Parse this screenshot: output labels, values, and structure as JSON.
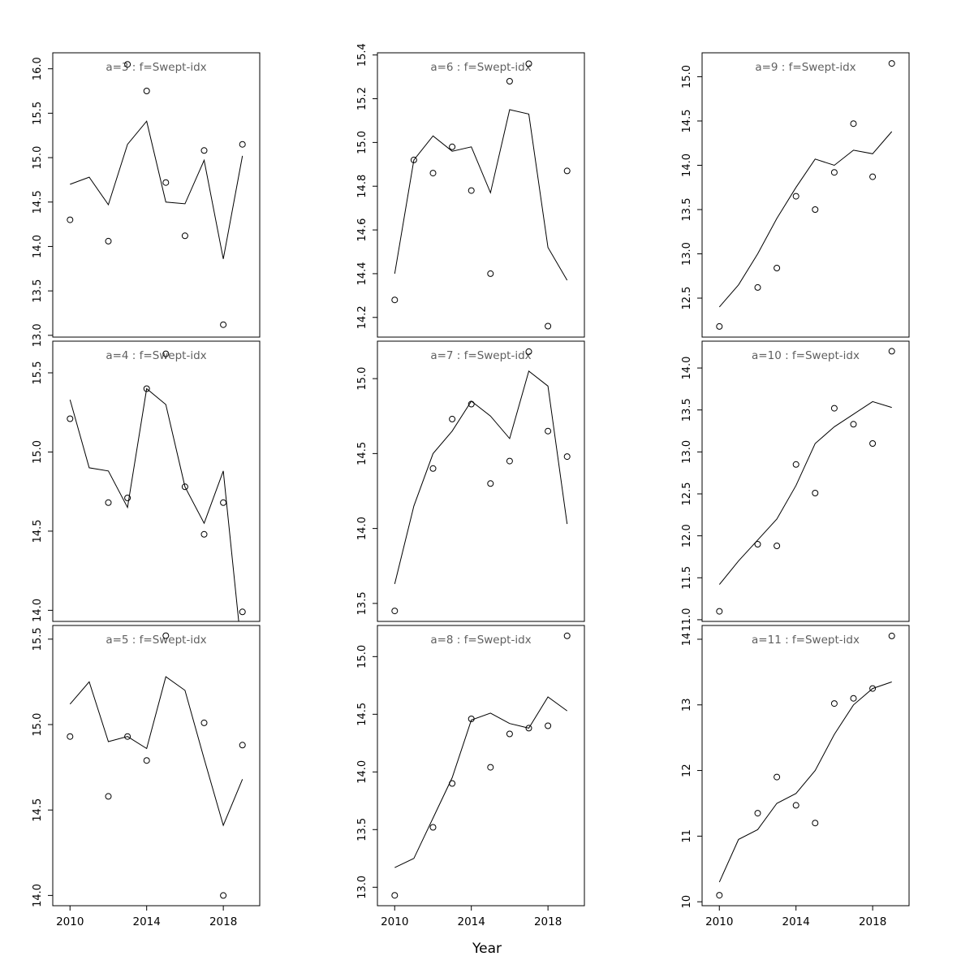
{
  "figure": {
    "xlabel": "Year"
  },
  "chart_data": {
    "type": "line+scatter",
    "title": "",
    "xlabel": "Year",
    "ylabel": "",
    "grid": "off",
    "legend": "none",
    "layout": {
      "rows": 3,
      "cols": 3,
      "order": "row-major-display"
    },
    "colors": {
      "line": "#000000",
      "point": "#000000",
      "frame": "#000000",
      "title": "#5f5f5f",
      "tick_label": "#000000"
    },
    "x": [
      2010,
      2011,
      2012,
      2013,
      2014,
      2015,
      2016,
      2017,
      2018,
      2019
    ],
    "xlim": [
      2009.1,
      2019.9
    ],
    "xtick_labels": [
      "2010",
      "2014",
      "2018"
    ],
    "panels": [
      {
        "id": "a3",
        "title": "a=3 : f=Swept-idx",
        "ylim": [
          12.98,
          16.18
        ],
        "ytick_labels": [
          "13.0",
          "13.5",
          "14.0",
          "14.5",
          "15.0",
          "15.5",
          "16.0"
        ],
        "points": [
          14.3,
          null,
          14.06,
          16.05,
          15.75,
          14.72,
          14.12,
          15.08,
          13.12,
          15.15
        ],
        "line": [
          14.7,
          14.78,
          14.47,
          15.15,
          15.41,
          14.5,
          14.48,
          14.97,
          13.86,
          15.02
        ]
      },
      {
        "id": "a6",
        "title": "a=6 : f=Swept-idx",
        "ylim": [
          14.11,
          15.41
        ],
        "ytick_labels": [
          "14.2",
          "14.4",
          "14.6",
          "14.8",
          "15.0",
          "15.2",
          "15.4"
        ],
        "points": [
          14.28,
          14.92,
          14.86,
          14.98,
          14.78,
          14.4,
          15.28,
          15.36,
          14.16,
          14.87
        ],
        "line": [
          14.4,
          14.92,
          15.03,
          14.96,
          14.98,
          14.77,
          15.15,
          15.13,
          14.52,
          14.37
        ]
      },
      {
        "id": "a9",
        "title": "a=9 : f=Swept-idx",
        "ylim": [
          12.06,
          15.27
        ],
        "ytick_labels": [
          "12.5",
          "13.0",
          "13.5",
          "14.0",
          "14.5",
          "15.0"
        ],
        "points": [
          12.18,
          null,
          12.62,
          12.84,
          13.65,
          13.5,
          13.92,
          14.47,
          13.87,
          15.15
        ],
        "line": [
          12.4,
          12.65,
          13.0,
          13.4,
          13.75,
          14.07,
          14.0,
          14.17,
          14.13,
          14.38
        ]
      },
      {
        "id": "a4",
        "title": "a=4 : f=Swept-idx",
        "ylim": [
          13.93,
          15.7
        ],
        "ytick_labels": [
          "14.0",
          "14.5",
          "15.0",
          "15.5"
        ],
        "points": [
          15.21,
          null,
          14.68,
          14.71,
          15.4,
          15.62,
          14.78,
          14.48,
          14.68,
          13.99
        ],
        "line": [
          15.33,
          14.9,
          14.88,
          14.65,
          15.4,
          15.3,
          14.78,
          14.55,
          14.88,
          13.7
        ]
      },
      {
        "id": "a7",
        "title": "a=7 : f=Swept-idx",
        "ylim": [
          13.38,
          15.25
        ],
        "ytick_labels": [
          "13.5",
          "14.0",
          "14.5",
          "15.0"
        ],
        "points": [
          13.45,
          null,
          14.4,
          14.73,
          14.83,
          14.3,
          14.45,
          15.18,
          14.65,
          14.48
        ],
        "line": [
          13.63,
          14.15,
          14.5,
          14.65,
          14.85,
          14.75,
          14.6,
          15.05,
          14.95,
          14.03
        ]
      },
      {
        "id": "a10",
        "title": "a=10 : f=Swept-idx",
        "ylim": [
          10.98,
          14.32
        ],
        "ytick_labels": [
          "11.0",
          "11.5",
          "12.0",
          "12.5",
          "13.0",
          "13.5",
          "14.0"
        ],
        "points": [
          11.1,
          null,
          11.9,
          11.88,
          12.85,
          12.51,
          13.52,
          13.33,
          13.1,
          14.2
        ],
        "line": [
          11.42,
          11.7,
          11.95,
          12.2,
          12.6,
          13.1,
          13.3,
          13.45,
          13.6,
          13.53
        ]
      },
      {
        "id": "a5",
        "title": "a=5 : f=Swept-idx",
        "ylim": [
          13.94,
          15.58
        ],
        "ytick_labels": [
          "14.0",
          "14.5",
          "15.0",
          "15.5"
        ],
        "points": [
          14.93,
          null,
          14.58,
          14.93,
          14.79,
          15.52,
          null,
          15.01,
          14.0,
          14.88
        ],
        "line": [
          15.12,
          15.25,
          14.9,
          14.93,
          14.86,
          15.28,
          15.2,
          14.8,
          14.41,
          14.68
        ]
      },
      {
        "id": "a8",
        "title": "a=8 : f=Swept-idx",
        "ylim": [
          12.84,
          15.27
        ],
        "ytick_labels": [
          "13.0",
          "13.5",
          "14.0",
          "14.5",
          "15.0"
        ],
        "points": [
          12.93,
          null,
          13.52,
          13.9,
          14.46,
          14.04,
          14.33,
          14.38,
          14.4,
          15.18
        ],
        "line": [
          13.17,
          13.25,
          13.6,
          13.95,
          14.45,
          14.51,
          14.42,
          14.38,
          14.65,
          14.53
        ]
      },
      {
        "id": "a11",
        "title": "a=11 : f=Swept-idx",
        "ylim": [
          9.94,
          14.21
        ],
        "ytick_labels": [
          "10",
          "11",
          "12",
          "13",
          "14"
        ],
        "points": [
          10.1,
          null,
          11.35,
          11.9,
          11.47,
          11.2,
          13.02,
          13.1,
          13.25,
          14.05
        ],
        "line": [
          10.3,
          10.95,
          11.1,
          11.5,
          11.65,
          12.0,
          12.55,
          13.0,
          13.25,
          13.35
        ]
      }
    ]
  }
}
